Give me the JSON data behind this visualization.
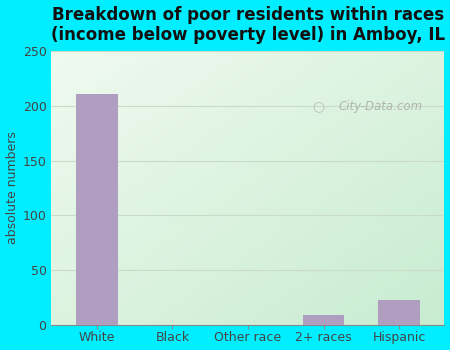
{
  "title": "Breakdown of poor residents within races\n(income below poverty level) in Amboy, IL",
  "categories": [
    "White",
    "Black",
    "Other race",
    "2+ races",
    "Hispanic"
  ],
  "values": [
    211,
    0,
    0,
    9,
    22
  ],
  "bar_color": "#b09ec0",
  "ylabel": "absolute numbers",
  "ylim": [
    0,
    250
  ],
  "yticks": [
    0,
    50,
    100,
    150,
    200,
    250
  ],
  "bg_outer": "#00eeff",
  "bg_plot_topleft": "#f0faf0",
  "bg_plot_bottomright": "#c8ecd0",
  "title_fontsize": 12,
  "label_fontsize": 9,
  "tick_fontsize": 9,
  "watermark": "City-Data.com",
  "grid_color": "#d0e8d0",
  "bar_width": 0.55
}
